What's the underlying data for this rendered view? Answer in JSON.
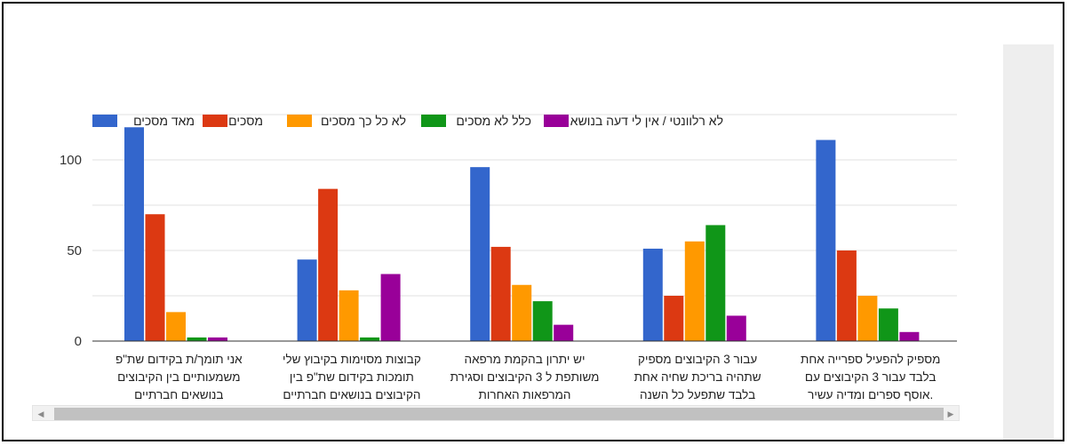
{
  "chart_data": {
    "type": "bar",
    "categories": [
      [
        "אני תומך/ת בקידום שת\"פ",
        "משמעותיים בין הקיבוצים",
        "בנושאים חברתיים"
      ],
      [
        "קבוצות מסוימות בקיבוץ שלי",
        "תומכות בקידום שת\"פ בין",
        "הקיבוצים בנושאים חברתיים"
      ],
      [
        "יש יתרון בהקמת מרפאה",
        "משותפת ל 3 הקיבוצים וסגירת",
        "המרפאות האחרות"
      ],
      [
        "עבור 3 הקיבוצים מספיק",
        "שתהיה בריכת שחיה אחת",
        "בלבד שתפעל כל השנה"
      ],
      [
        "מספיק להפעיל ספרייה אחת",
        "בלבד עבור 3 הקיבוצים עם",
        ".אוסף ספרים ומדיה עשיר"
      ]
    ],
    "series": [
      {
        "name": "מאד מסכים",
        "color": "#3366cc",
        "values": [
          118,
          45,
          96,
          51,
          111
        ]
      },
      {
        "name": "מסכים",
        "color": "#dc3912",
        "values": [
          70,
          84,
          52,
          25,
          50
        ]
      },
      {
        "name": "לא כל כך מסכים",
        "color": "#ff9900",
        "values": [
          16,
          28,
          31,
          55,
          25
        ]
      },
      {
        "name": "כלל לא מסכים",
        "color": "#109618",
        "values": [
          2,
          2,
          22,
          64,
          18
        ]
      },
      {
        "name": "לא רלוונטי / אין לי דעה בנושא",
        "color": "#990099",
        "values": [
          2,
          37,
          9,
          14,
          5
        ]
      }
    ],
    "yticks": [
      "0",
      "50",
      "100"
    ],
    "ylim": [
      0,
      130
    ],
    "legend": "top",
    "grid": true
  }
}
